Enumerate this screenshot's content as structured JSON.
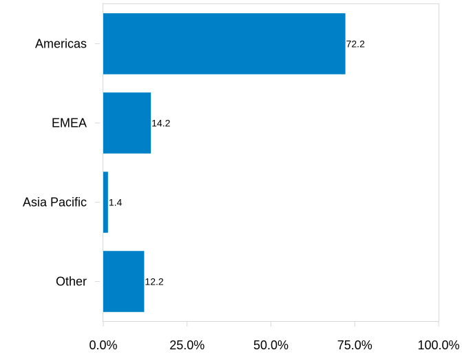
{
  "chart_data": {
    "type": "bar",
    "orientation": "horizontal",
    "categories": [
      "Americas",
      "EMEA",
      "Asia Pacific",
      "Other"
    ],
    "values": [
      72.2,
      14.2,
      1.4,
      12.2
    ],
    "data_labels": [
      "72.2",
      "14.2",
      "1.4",
      "12.2"
    ],
    "xlim": [
      0,
      100
    ],
    "x_ticks": [
      0,
      25,
      50,
      75,
      100
    ],
    "x_tick_labels": [
      "0.0%",
      "25.0%",
      "50.0%",
      "75.0%",
      "100.0%"
    ],
    "grid": false,
    "legend": "none",
    "bar_color": "#0080c6",
    "frame_color": "#d9d9d9"
  }
}
